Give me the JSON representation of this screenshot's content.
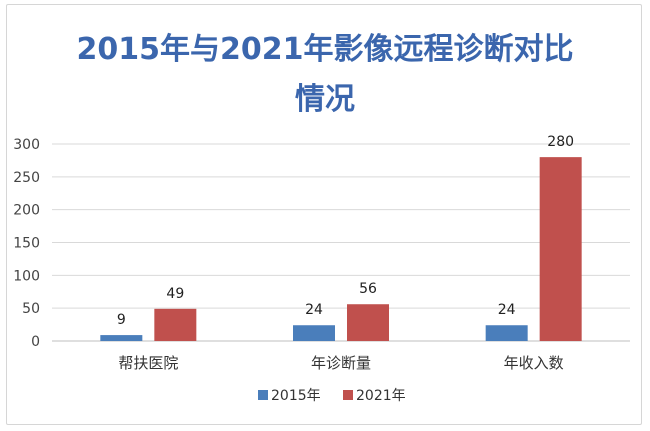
{
  "chart_data": {
    "type": "bar",
    "title_line1": "2015年与2021年影像远程诊断对比",
    "title_line2": "情况",
    "categories": [
      "帮扶医院",
      "年诊断量",
      "年收入数"
    ],
    "series": [
      {
        "name": "2015年",
        "color": "#4a7ebb",
        "values": [
          9,
          24,
          24
        ]
      },
      {
        "name": "2021年",
        "color": "#c0504d",
        "values": [
          49,
          56,
          280
        ]
      }
    ],
    "ylim": [
      0,
      300
    ],
    "yticks": [
      0,
      50,
      100,
      150,
      200,
      250,
      300
    ],
    "grid": true,
    "legend_position": "bottom-center",
    "xlabel": "",
    "ylabel": ""
  }
}
